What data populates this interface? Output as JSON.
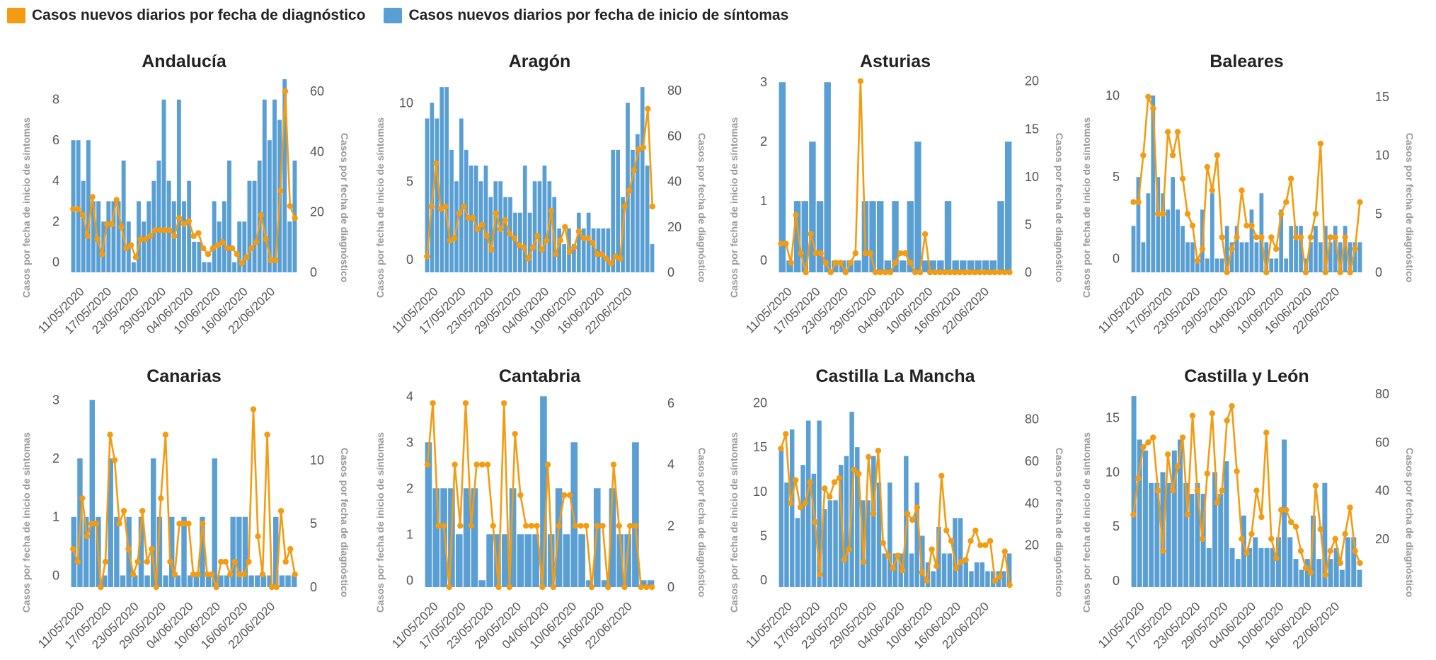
{
  "colors": {
    "diagnosis": "#f39c12",
    "symptoms": "#5a9fd4",
    "tick": "#555555",
    "axis_title": "#999999",
    "title": "#222222"
  },
  "legend": {
    "diagnosis": "Casos nuevos diarios por fecha de diagnóstico",
    "symptoms": "Casos nuevos diarios por fecha de inicio de síntomas"
  },
  "chart_data": [
    {
      "type": "bar+line",
      "title": "Andalucía",
      "ylabel_left": "Casos por fecha de inicio de síntomas",
      "ylabel_right": "Casos por fecha de diagnóstico",
      "x_ticks": [
        "11/05/2020",
        "17/05/2020",
        "23/05/2020",
        "29/05/2020",
        "04/06/2020",
        "10/06/2020",
        "16/06/2020",
        "22/06/2020"
      ],
      "left_axis": {
        "ticks": [
          0,
          2,
          4,
          6,
          8
        ],
        "range": [
          -0.5,
          9
        ]
      },
      "right_axis": {
        "ticks": [
          0,
          20,
          40,
          60
        ],
        "range": [
          0,
          64
        ]
      },
      "bars": [
        6,
        6,
        4,
        6,
        3,
        3,
        2,
        3,
        3,
        3,
        5,
        2,
        0,
        3,
        2,
        3,
        4,
        5,
        8,
        4,
        3,
        8,
        3,
        4,
        1,
        1,
        0,
        0,
        3,
        2,
        3,
        5,
        0,
        2,
        2,
        4,
        4,
        5,
        8,
        6,
        8,
        7,
        9,
        2,
        5
      ],
      "line": [
        21,
        21,
        19,
        12,
        25,
        11,
        6,
        16,
        16,
        24,
        15,
        8,
        9,
        5,
        11,
        11,
        12,
        14,
        14,
        14,
        14,
        12,
        18,
        16,
        17,
        12,
        13,
        8,
        6,
        8,
        9,
        10,
        8,
        8,
        6,
        3,
        5,
        8,
        10,
        19,
        11,
        4,
        4,
        27,
        60,
        22,
        18
      ]
    },
    {
      "type": "bar+line",
      "title": "Aragón",
      "ylabel_left": "Casos por fecha de inicio de síntomas",
      "ylabel_right": "Casos por fecha de diagnóstico",
      "x_ticks": [
        "11/05/2020",
        "17/05/2020",
        "23/05/2020",
        "29/05/2020",
        "04/06/2020",
        "10/06/2020",
        "16/06/2020",
        "22/06/2020"
      ],
      "left_axis": {
        "ticks": [
          0,
          5,
          10
        ],
        "range": [
          -0.8,
          11.5
        ]
      },
      "right_axis": {
        "ticks": [
          0,
          20,
          40,
          60,
          80
        ],
        "range": [
          0,
          85
        ]
      },
      "bars": [
        9,
        10,
        9,
        11,
        11,
        7,
        5,
        9,
        7,
        6,
        6,
        5,
        6,
        4,
        5,
        5,
        4,
        4,
        3,
        3,
        6,
        3,
        5,
        5,
        6,
        5,
        4,
        2,
        1,
        2,
        1,
        3,
        2,
        3,
        2,
        2,
        2,
        2,
        7,
        7,
        4,
        10,
        7,
        8,
        11,
        6,
        1
      ],
      "line": [
        7,
        29,
        48,
        28,
        29,
        14,
        15,
        26,
        29,
        24,
        24,
        19,
        21,
        16,
        10,
        26,
        19,
        23,
        17,
        15,
        12,
        11,
        6,
        11,
        16,
        10,
        14,
        27,
        8,
        14,
        20,
        9,
        11,
        18,
        15,
        15,
        13,
        8,
        8,
        6,
        4,
        7,
        6,
        29,
        36,
        45,
        54,
        55,
        72,
        29
      ]
    },
    {
      "type": "bar+line",
      "title": "Asturias",
      "ylabel_left": "Casos por fecha de inicio de síntomas",
      "ylabel_right": "Casos por fecha de diagnóstico",
      "x_ticks": [
        "11/05/2020",
        "17/05/2020",
        "23/05/2020",
        "29/05/2020",
        "04/06/2020",
        "10/06/2020",
        "16/06/2020",
        "22/06/2020"
      ],
      "left_axis": {
        "ticks": [
          0,
          1,
          2,
          3
        ],
        "range": [
          -0.2,
          3.05
        ]
      },
      "right_axis": {
        "ticks": [
          0,
          5,
          10,
          15,
          20
        ],
        "range": [
          0,
          20.2
        ]
      },
      "bars": [
        3,
        0,
        1,
        1,
        2,
        1,
        3,
        0,
        0,
        0,
        0,
        1,
        1,
        1,
        0,
        1,
        0,
        1,
        2,
        0,
        0,
        0,
        1,
        0,
        0,
        0,
        0,
        0,
        0,
        1,
        2
      ],
      "line": [
        3,
        3,
        1,
        6,
        2,
        0,
        4,
        2,
        2,
        1,
        0,
        1,
        1,
        0,
        1,
        2,
        20,
        2,
        2,
        0,
        0,
        0,
        0,
        1,
        2,
        2,
        1,
        0,
        0,
        4,
        0,
        0,
        0,
        0,
        0,
        0,
        0,
        0,
        0,
        0,
        0,
        0,
        0,
        0,
        0,
        0,
        0
      ]
    },
    {
      "type": "bar+line",
      "title": "Baleares",
      "ylabel_left": "Casos por fecha de inicio de síntomas",
      "ylabel_right": "Casos por fecha de diagnóstico",
      "x_ticks": [
        "11/05/2020",
        "17/05/2020",
        "23/05/2020",
        "29/05/2020",
        "04/06/2020",
        "10/06/2020",
        "16/06/2020",
        "22/06/2020"
      ],
      "left_axis": {
        "ticks": [
          0,
          5,
          10
        ],
        "range": [
          -0.85,
          11
        ]
      },
      "right_axis": {
        "ticks": [
          0,
          5,
          10,
          15
        ],
        "range": [
          0,
          16.5
        ]
      },
      "bars": [
        2,
        5,
        1,
        4,
        10,
        5,
        4,
        3,
        5,
        3,
        2,
        1,
        1,
        0,
        3,
        0,
        4,
        0,
        0,
        2,
        1,
        2,
        1,
        1,
        3,
        1,
        4,
        1,
        0,
        0,
        3,
        0,
        2,
        2,
        2,
        0,
        1,
        2,
        1,
        2,
        1,
        2,
        1,
        2,
        1,
        1,
        1
      ],
      "line": [
        6,
        6,
        10,
        15,
        14,
        5,
        5,
        12,
        10,
        12,
        8,
        5,
        4,
        1,
        2,
        9,
        7,
        10,
        3,
        0,
        2,
        3,
        7,
        4,
        4,
        3,
        3,
        0,
        3,
        2,
        5,
        6,
        8,
        3,
        3,
        0,
        3,
        5,
        11,
        0,
        3,
        3,
        0,
        3,
        0,
        2,
        6
      ]
    },
    {
      "type": "bar+line",
      "title": "Canarias",
      "ylabel_left": "Casos por fecha de inicio de síntomas",
      "ylabel_right": "Casos por fecha de diagnóstico",
      "x_ticks": [
        "11/05/2020",
        "17/05/2020",
        "23/05/2020",
        "29/05/2020",
        "04/06/2020",
        "10/06/2020",
        "16/06/2020",
        "22/06/2020"
      ],
      "left_axis": {
        "ticks": [
          0,
          1,
          2,
          3
        ],
        "range": [
          -0.2,
          3.1
        ]
      },
      "right_axis": {
        "ticks": [
          0,
          5,
          10
        ],
        "range": [
          0,
          15.2
        ]
      },
      "bars": [
        1,
        2,
        1,
        3,
        1,
        0,
        2,
        1,
        0,
        1,
        0,
        1,
        0,
        2,
        1,
        0,
        1,
        0,
        1,
        0,
        0,
        1,
        0,
        2,
        0,
        0,
        1,
        1,
        1,
        0,
        0,
        0,
        0,
        1,
        0,
        0,
        0
      ],
      "line": [
        3,
        2,
        7,
        4,
        5,
        5,
        0,
        2,
        12,
        10,
        5,
        6,
        3,
        1,
        2,
        6,
        2,
        3,
        0,
        7,
        12,
        2,
        1,
        5,
        5,
        5,
        1,
        1,
        5,
        1,
        1,
        0,
        2,
        2,
        1,
        2,
        1,
        1,
        2,
        14,
        4,
        1,
        12,
        0,
        0,
        6,
        2,
        3,
        1
      ]
    },
    {
      "type": "bar+line",
      "title": "Cantabria",
      "ylabel_left": "Casos por fecha de inicio de síntomas",
      "ylabel_right": "Casos por fecha de diagnóstico",
      "x_ticks": [
        "11/05/2020",
        "17/05/2020",
        "23/05/2020",
        "29/05/2020",
        "04/06/2020",
        "10/06/2020",
        "16/06/2020",
        "22/06/2020"
      ],
      "left_axis": {
        "ticks": [
          0,
          1,
          2,
          3,
          4
        ],
        "range": [
          -0.15,
          4.05
        ]
      },
      "right_axis": {
        "ticks": [
          0,
          2,
          4,
          6
        ],
        "range": [
          0,
          6.3
        ]
      },
      "bars": [
        3,
        2,
        2,
        2,
        1,
        2,
        2,
        0,
        1,
        1,
        1,
        2,
        1,
        1,
        1,
        4,
        1,
        2,
        1,
        3,
        1,
        0,
        2,
        0,
        2,
        1,
        1,
        3,
        0,
        0
      ],
      "line": [
        4,
        6,
        2,
        2,
        0,
        4,
        2,
        6,
        2,
        4,
        4,
        4,
        2,
        0,
        6,
        0,
        5,
        3,
        2,
        2,
        2,
        0,
        4,
        0,
        2,
        3,
        3,
        2,
        2,
        2,
        0,
        2,
        2,
        0,
        4,
        2,
        0,
        2,
        2,
        0,
        0,
        0
      ]
    },
    {
      "type": "bar+line",
      "title": "Castilla La Mancha",
      "ylabel_left": "Casos por fecha de inicio de síntomas",
      "ylabel_right": "Casos por fecha de diagnóstico",
      "x_ticks": [
        "11/05/2020",
        "17/05/2020",
        "23/05/2020",
        "29/05/2020",
        "04/06/2020",
        "10/06/2020",
        "16/06/2020",
        "22/06/2020"
      ],
      "left_axis": {
        "ticks": [
          0,
          5,
          10,
          15,
          20
        ],
        "range": [
          -0.8,
          21
        ]
      },
      "right_axis": {
        "ticks": [
          20,
          40,
          60,
          80
        ],
        "range": [
          0,
          92
        ]
      },
      "bars": [
        15,
        11,
        17,
        7,
        13,
        18,
        12,
        18,
        8,
        9,
        9,
        13,
        14,
        19,
        15,
        9,
        9,
        14,
        11,
        3,
        11,
        3,
        3,
        14,
        3,
        11,
        5,
        2,
        1,
        6,
        3,
        3,
        7,
        7,
        2,
        1,
        2,
        2,
        1,
        1,
        1,
        1,
        3
      ],
      "line": [
        66,
        73,
        40,
        51,
        38,
        40,
        50,
        31,
        6,
        47,
        43,
        50,
        52,
        13,
        18,
        56,
        54,
        12,
        62,
        35,
        65,
        21,
        15,
        9,
        15,
        8,
        35,
        32,
        38,
        7,
        3,
        18,
        10,
        53,
        27,
        22,
        9,
        12,
        13,
        22,
        27,
        20,
        20,
        22,
        3,
        5,
        17,
        1
      ]
    },
    {
      "type": "bar+line",
      "title": "Castilla y León",
      "ylabel_left": "Casos por fecha de inicio de síntomas",
      "ylabel_right": "Casos por fecha de diagnóstico",
      "x_ticks": [
        "11/05/2020",
        "17/05/2020",
        "23/05/2020",
        "29/05/2020",
        "04/06/2020",
        "10/06/2020",
        "16/06/2020",
        "22/06/2020"
      ],
      "left_axis": {
        "ticks": [
          0,
          5,
          10,
          15
        ],
        "range": [
          -0.6,
          17.2
        ]
      },
      "right_axis": {
        "ticks": [
          20,
          40,
          60,
          80
        ],
        "range": [
          0,
          80
        ]
      },
      "bars": [
        17,
        13,
        12,
        9,
        9,
        10,
        9,
        12,
        13,
        9,
        8,
        9,
        8,
        3,
        10,
        8,
        11,
        3,
        2,
        6,
        3,
        4,
        3,
        3,
        3,
        4,
        13,
        4,
        2,
        1,
        2,
        6,
        2,
        9,
        2,
        3,
        1,
        4,
        4,
        1
      ],
      "line": [
        30,
        45,
        58,
        60,
        62,
        40,
        15,
        55,
        40,
        50,
        62,
        30,
        71,
        40,
        20,
        47,
        72,
        35,
        40,
        69,
        75,
        48,
        20,
        14,
        22,
        40,
        29,
        64,
        20,
        12,
        32,
        32,
        27,
        25,
        15,
        8,
        6,
        42,
        24,
        5,
        15,
        20,
        10,
        22,
        33,
        15,
        10
      ]
    }
  ]
}
